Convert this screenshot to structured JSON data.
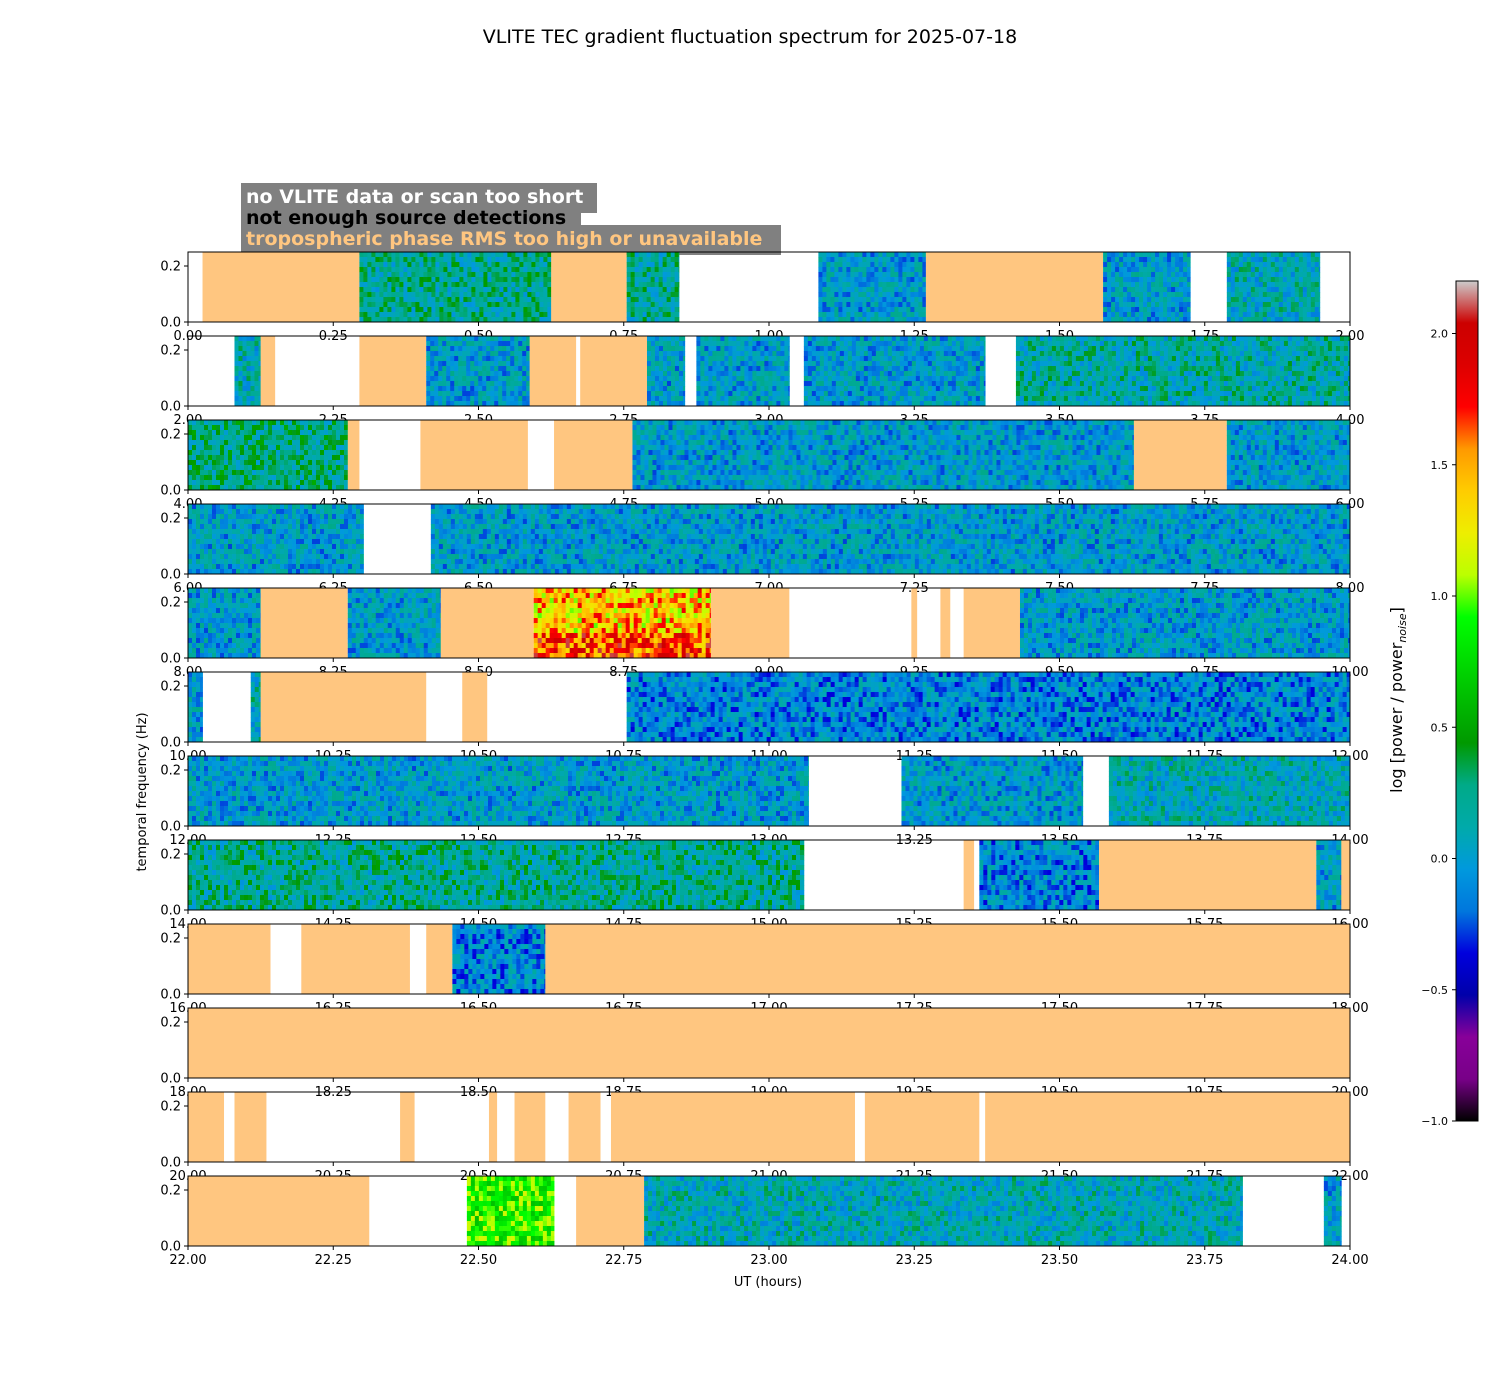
{
  "chart_data": {
    "type": "heatmap",
    "title": "VLITE TEC gradient fluctuation spectrum for 2025-07-18",
    "xlabel": "UT (hours)",
    "ylabel": "temporal frequency (Hz)",
    "colorbar_label": "log [power / power",
    "colorbar_label_sub": "noise",
    "colorbar_label_end": "]",
    "colorbar_range": [
      -1.0,
      2.2
    ],
    "colorbar_ticks": [
      "−1.0",
      "−0.5",
      "0.0",
      "0.5",
      "1.0",
      "1.5",
      "2.0"
    ],
    "colorbar_tick_values": [
      -1.0,
      -0.5,
      0.0,
      0.5,
      1.0,
      1.5,
      2.0
    ],
    "ylim": [
      0,
      0.25
    ],
    "y_ticks": [
      "0.0",
      "0.2"
    ],
    "y_tick_values": [
      0.0,
      0.2
    ],
    "colormap": "nipy_spectral",
    "legend": [
      {
        "label": "no VLITE data or scan too short",
        "color": "#ffffff"
      },
      {
        "label": "not enough source detections",
        "color": "#000000"
      },
      {
        "label": "tropospheric phase RMS too high or unavailable",
        "color": "#ffc680"
      }
    ],
    "legend_background": "#808080",
    "flag_color": "#ffc680",
    "panels": [
      {
        "xlim": [
          0,
          2
        ],
        "xticks": [
          "0.00",
          "0.25",
          "0.50",
          "0.75",
          "1.00",
          "1.25",
          "1.50",
          "1.75",
          "2.00"
        ],
        "segments": [
          {
            "start": 0.025,
            "end": 0.295,
            "kind": "tropo"
          },
          {
            "start": 0.295,
            "end": 0.625,
            "kind": "data",
            "level": 0.2
          },
          {
            "start": 0.625,
            "end": 0.755,
            "kind": "tropo"
          },
          {
            "start": 0.755,
            "end": 0.845,
            "kind": "data",
            "level": 0.2
          },
          {
            "start": 1.085,
            "end": 1.27,
            "kind": "data",
            "level": 0.0
          },
          {
            "start": 1.27,
            "end": 1.575,
            "kind": "tropo"
          },
          {
            "start": 1.575,
            "end": 1.725,
            "kind": "data",
            "level": 0.0
          },
          {
            "start": 1.788,
            "end": 1.948,
            "kind": "data",
            "level": 0.1
          }
        ]
      },
      {
        "xlim": [
          2,
          4
        ],
        "xticks": [
          "2.00",
          "2.25",
          "2.50",
          "2.75",
          "3.00",
          "3.25",
          "3.50",
          "3.75",
          "4.00"
        ],
        "segments": [
          {
            "start": 2.08,
            "end": 2.125,
            "kind": "data",
            "level": 0.1
          },
          {
            "start": 2.125,
            "end": 2.15,
            "kind": "tropo"
          },
          {
            "start": 2.295,
            "end": 2.41,
            "kind": "tropo"
          },
          {
            "start": 2.41,
            "end": 2.588,
            "kind": "data",
            "level": 0.0
          },
          {
            "start": 2.588,
            "end": 2.668,
            "kind": "tropo"
          },
          {
            "start": 2.675,
            "end": 2.79,
            "kind": "tropo"
          },
          {
            "start": 2.79,
            "end": 2.855,
            "kind": "data",
            "level": 0.0
          },
          {
            "start": 2.875,
            "end": 3.035,
            "kind": "data",
            "level": 0.0
          },
          {
            "start": 3.06,
            "end": 3.372,
            "kind": "data",
            "level": 0.0
          },
          {
            "start": 3.425,
            "end": 4.0,
            "kind": "data",
            "level": 0.15
          }
        ]
      },
      {
        "xlim": [
          4,
          6
        ],
        "xticks": [
          "4.00",
          "4.25",
          "4.50",
          "4.75",
          "5.00",
          "5.25",
          "5.50",
          "5.75",
          "6.00"
        ],
        "segments": [
          {
            "start": 4.0,
            "end": 4.275,
            "kind": "data",
            "level": 0.25
          },
          {
            "start": 4.275,
            "end": 4.295,
            "kind": "tropo"
          },
          {
            "start": 4.4,
            "end": 4.585,
            "kind": "tropo"
          },
          {
            "start": 4.63,
            "end": 4.765,
            "kind": "tropo"
          },
          {
            "start": 4.765,
            "end": 5.628,
            "kind": "data",
            "level": 0.0
          },
          {
            "start": 5.628,
            "end": 5.788,
            "kind": "tropo"
          },
          {
            "start": 5.788,
            "end": 6.0,
            "kind": "data",
            "level": 0.0
          }
        ]
      },
      {
        "xlim": [
          6,
          8
        ],
        "xticks": [
          "6.00",
          "6.25",
          "6.50",
          "6.75",
          "7.00",
          "7.25",
          "7.50",
          "7.75",
          "8.00"
        ],
        "segments": [
          {
            "start": 6.0,
            "end": 6.302,
            "kind": "data",
            "level": 0.0
          },
          {
            "start": 6.418,
            "end": 8.0,
            "kind": "data",
            "level": 0.0
          }
        ]
      },
      {
        "xlim": [
          8,
          10
        ],
        "xticks": [
          "8.00",
          "8.25",
          "8.50",
          "8.75",
          "9.00",
          "9.25",
          "9.50",
          "9.75",
          "10.00"
        ],
        "segments": [
          {
            "start": 8.0,
            "end": 8.125,
            "kind": "data",
            "level": 0.0
          },
          {
            "start": 8.125,
            "end": 8.275,
            "kind": "tropo"
          },
          {
            "start": 8.275,
            "end": 8.435,
            "kind": "data",
            "level": 0.0
          },
          {
            "start": 8.435,
            "end": 8.595,
            "kind": "tropo"
          },
          {
            "start": 8.595,
            "end": 8.9,
            "kind": "data",
            "level": 1.8
          },
          {
            "start": 8.9,
            "end": 9.035,
            "kind": "tropo"
          },
          {
            "start": 9.245,
            "end": 9.255,
            "kind": "tropo"
          },
          {
            "start": 9.295,
            "end": 9.312,
            "kind": "tropo"
          },
          {
            "start": 9.335,
            "end": 9.432,
            "kind": "tropo"
          },
          {
            "start": 9.432,
            "end": 10.0,
            "kind": "data",
            "level": 0.0
          }
        ]
      },
      {
        "xlim": [
          10,
          12
        ],
        "xticks": [
          "10.00",
          "10.25",
          "10.50",
          "10.75",
          "11.00",
          "11.25",
          "11.50",
          "11.75",
          "12.00"
        ],
        "segments": [
          {
            "start": 10.0,
            "end": 10.025,
            "kind": "data",
            "level": 0.0
          },
          {
            "start": 10.108,
            "end": 10.125,
            "kind": "data",
            "level": 0.1
          },
          {
            "start": 10.125,
            "end": 10.41,
            "kind": "tropo"
          },
          {
            "start": 10.472,
            "end": 10.515,
            "kind": "tropo"
          },
          {
            "start": 10.755,
            "end": 12.0,
            "kind": "data",
            "level": -0.1
          }
        ]
      },
      {
        "xlim": [
          12,
          14
        ],
        "xticks": [
          "12.00",
          "12.25",
          "12.50",
          "12.75",
          "13.00",
          "13.25",
          "13.50",
          "13.75",
          "14.00"
        ],
        "segments": [
          {
            "start": 12.0,
            "end": 13.068,
            "kind": "data",
            "level": 0.0
          },
          {
            "start": 13.228,
            "end": 13.54,
            "kind": "data",
            "level": 0.0
          },
          {
            "start": 13.585,
            "end": 14.0,
            "kind": "data",
            "level": 0.1
          }
        ]
      },
      {
        "xlim": [
          14,
          16
        ],
        "xticks": [
          "14.00",
          "14.25",
          "14.50",
          "14.75",
          "15.00",
          "15.25",
          "15.50",
          "15.75",
          "16.00"
        ],
        "segments": [
          {
            "start": 14.0,
            "end": 15.06,
            "kind": "data",
            "level": 0.2
          },
          {
            "start": 15.335,
            "end": 15.353,
            "kind": "tropo"
          },
          {
            "start": 15.362,
            "end": 15.568,
            "kind": "data",
            "level": -0.1
          },
          {
            "start": 15.568,
            "end": 15.942,
            "kind": "tropo"
          },
          {
            "start": 15.942,
            "end": 15.985,
            "kind": "data",
            "level": 0.0
          },
          {
            "start": 15.985,
            "end": 16.0,
            "kind": "tropo"
          }
        ]
      },
      {
        "xlim": [
          16,
          18
        ],
        "xticks": [
          "16.00",
          "16.25",
          "16.50",
          "16.75",
          "17.00",
          "17.25",
          "17.50",
          "17.75",
          "18.00"
        ],
        "segments": [
          {
            "start": 16.0,
            "end": 16.142,
            "kind": "tropo"
          },
          {
            "start": 16.195,
            "end": 16.382,
            "kind": "tropo"
          },
          {
            "start": 16.41,
            "end": 16.455,
            "kind": "tropo"
          },
          {
            "start": 16.455,
            "end": 16.615,
            "kind": "data",
            "level": -0.1
          },
          {
            "start": 16.615,
            "end": 18.0,
            "kind": "tropo"
          }
        ]
      },
      {
        "xlim": [
          18,
          20
        ],
        "xticks": [
          "18.00",
          "18.25",
          "18.50",
          "18.75",
          "19.00",
          "19.25",
          "19.50",
          "19.75",
          "20.00"
        ],
        "segments": [
          {
            "start": 18.0,
            "end": 20.0,
            "kind": "tropo"
          }
        ]
      },
      {
        "xlim": [
          20,
          22
        ],
        "xticks": [
          "20.00",
          "20.25",
          "20.50",
          "20.75",
          "21.00",
          "21.25",
          "21.50",
          "21.75",
          "22.00"
        ],
        "segments": [
          {
            "start": 20.0,
            "end": 20.062,
            "kind": "tropo"
          },
          {
            "start": 20.08,
            "end": 20.135,
            "kind": "tropo"
          },
          {
            "start": 20.365,
            "end": 20.39,
            "kind": "tropo"
          },
          {
            "start": 20.518,
            "end": 20.532,
            "kind": "tropo"
          },
          {
            "start": 20.562,
            "end": 20.615,
            "kind": "tropo"
          },
          {
            "start": 20.655,
            "end": 20.71,
            "kind": "tropo"
          },
          {
            "start": 20.728,
            "end": 21.148,
            "kind": "tropo"
          },
          {
            "start": 21.165,
            "end": 21.362,
            "kind": "tropo"
          },
          {
            "start": 21.372,
            "end": 22.0,
            "kind": "tropo"
          }
        ]
      },
      {
        "xlim": [
          22,
          24
        ],
        "xticks": [
          "22.00",
          "22.25",
          "22.50",
          "22.75",
          "23.00",
          "23.25",
          "23.50",
          "23.75",
          "24.00"
        ],
        "segments": [
          {
            "start": 22.0,
            "end": 22.312,
            "kind": "tropo"
          },
          {
            "start": 22.48,
            "end": 22.63,
            "kind": "data",
            "level": 0.9
          },
          {
            "start": 22.668,
            "end": 22.785,
            "kind": "tropo"
          },
          {
            "start": 22.785,
            "end": 23.815,
            "kind": "data",
            "level": 0.1
          },
          {
            "start": 23.955,
            "end": 23.985,
            "kind": "data",
            "level": 0.0
          }
        ]
      }
    ]
  }
}
